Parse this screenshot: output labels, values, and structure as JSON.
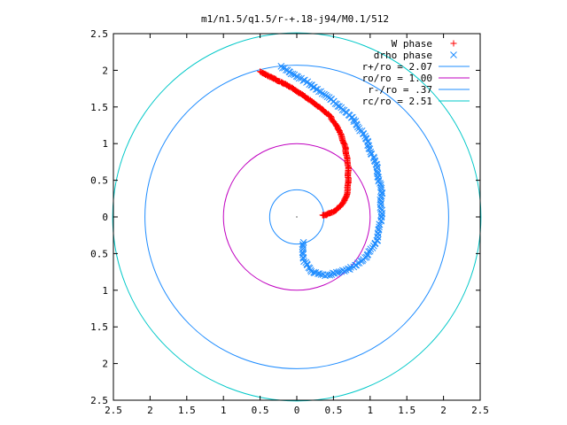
{
  "chart_data": {
    "type": "scatter",
    "title": "m1/n1.5/q1.5/r-+.18-j94/M0.1/512",
    "xlabel": "",
    "ylabel": "",
    "xlim": [
      -2.5,
      2.5
    ],
    "ylim": [
      -2.5,
      2.5
    ],
    "x_tick_values": [
      -2.5,
      -2,
      -1.5,
      -1,
      -0.5,
      0,
      0.5,
      1,
      1.5,
      2,
      2.5
    ],
    "x_tick_labels": [
      "2.5",
      "2",
      "1.5",
      "1",
      "0.5",
      "0",
      "0.5",
      "1",
      "1.5",
      "2",
      "2.5"
    ],
    "y_tick_values": [
      2.5,
      2,
      1.5,
      1,
      0.5,
      0,
      -0.5,
      -1,
      -1.5,
      -2,
      -2.5
    ],
    "y_tick_labels": [
      "2.5",
      "2",
      "1.5",
      "1",
      "0.5",
      "0",
      "0.5",
      "1",
      "1.5",
      "2",
      "2.5"
    ],
    "grid": false,
    "legend_position": "top-right",
    "series": [
      {
        "name": "W phase",
        "marker": "plus",
        "color": "#ff0000",
        "anchors": [
          [
            -0.5,
            1.98
          ],
          [
            -0.3,
            1.88
          ],
          [
            -0.1,
            1.78
          ],
          [
            0.1,
            1.65
          ],
          [
            0.28,
            1.52
          ],
          [
            0.45,
            1.38
          ],
          [
            0.58,
            1.18
          ],
          [
            0.66,
            0.95
          ],
          [
            0.7,
            0.7
          ],
          [
            0.7,
            0.45
          ],
          [
            0.68,
            0.28
          ],
          [
            0.6,
            0.15
          ],
          [
            0.5,
            0.07
          ],
          [
            0.4,
            0.03
          ],
          [
            0.35,
            0.02
          ]
        ]
      },
      {
        "name": "drho phase",
        "marker": "cross",
        "color": "#1e8cff",
        "anchors": [
          [
            -0.22,
            2.05
          ],
          [
            0.0,
            1.92
          ],
          [
            0.2,
            1.8
          ],
          [
            0.4,
            1.65
          ],
          [
            0.6,
            1.5
          ],
          [
            0.8,
            1.3
          ],
          [
            0.95,
            1.05
          ],
          [
            1.08,
            0.72
          ],
          [
            1.15,
            0.35
          ],
          [
            1.15,
            0.0
          ],
          [
            1.1,
            -0.3
          ],
          [
            0.95,
            -0.55
          ],
          [
            0.7,
            -0.72
          ],
          [
            0.4,
            -0.8
          ],
          [
            0.2,
            -0.75
          ],
          [
            0.1,
            -0.6
          ],
          [
            0.08,
            -0.45
          ],
          [
            0.08,
            -0.35
          ]
        ]
      },
      {
        "name": "r+/ro = 2.07",
        "type": "circle",
        "radius": 2.07,
        "color": "#1e8cff"
      },
      {
        "name": "ro/ro = 1.00",
        "type": "circle",
        "radius": 1.0,
        "color": "#c000c0"
      },
      {
        "name": "r-/ro = .37",
        "type": "circle",
        "radius": 0.37,
        "color": "#1e8cff"
      },
      {
        "name": "rc/ro = 2.51",
        "type": "circle",
        "radius": 2.51,
        "color": "#00c8c8"
      }
    ]
  }
}
